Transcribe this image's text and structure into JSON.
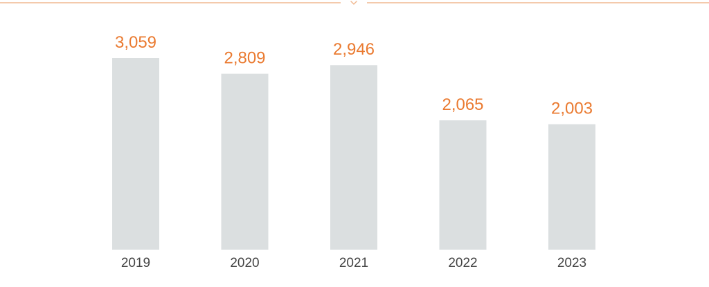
{
  "colors": {
    "accent": "#ea7a30",
    "bar": "#dbdfe0",
    "tick_text": "#444444",
    "divider": "#f0b890"
  },
  "divider": {
    "icon": "chevron-down-icon"
  },
  "chart_data": {
    "type": "bar",
    "categories": [
      "2019",
      "2020",
      "2021",
      "2022",
      "2023"
    ],
    "values": [
      3059,
      2809,
      2946,
      2065,
      2003
    ],
    "value_labels": [
      "3,059",
      "2,809",
      "2,946",
      "2,065",
      "2,003"
    ],
    "title": "",
    "xlabel": "",
    "ylabel": "",
    "ylim": [
      0,
      3059
    ],
    "grid": false,
    "legend": "none"
  }
}
